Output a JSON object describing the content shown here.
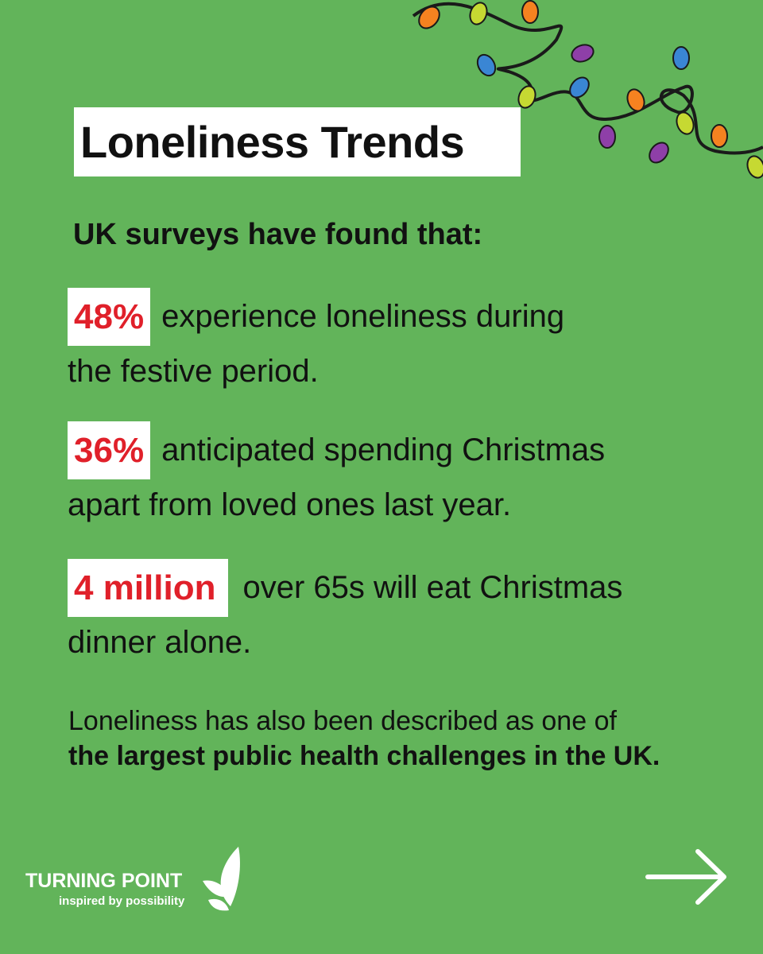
{
  "header": {
    "title": "Loneliness Trends",
    "subtitle": "UK surveys have found that:"
  },
  "stats": [
    {
      "figure": "48%",
      "lines": [
        "experience loneliness during",
        "the festive period."
      ]
    },
    {
      "figure": "36%",
      "lines": [
        "anticipated spending Christmas",
        "apart from loved ones last year."
      ]
    },
    {
      "figure": "4 million",
      "lines": [
        "over 65s will eat Christmas",
        "dinner alone."
      ]
    }
  ],
  "closing": {
    "text": "Loneliness has also been described as one of",
    "emphasis": "the largest public health challenges in the UK."
  },
  "footer": {
    "brand": "TURNING POINT",
    "tagline": "inspired by possibility"
  }
}
